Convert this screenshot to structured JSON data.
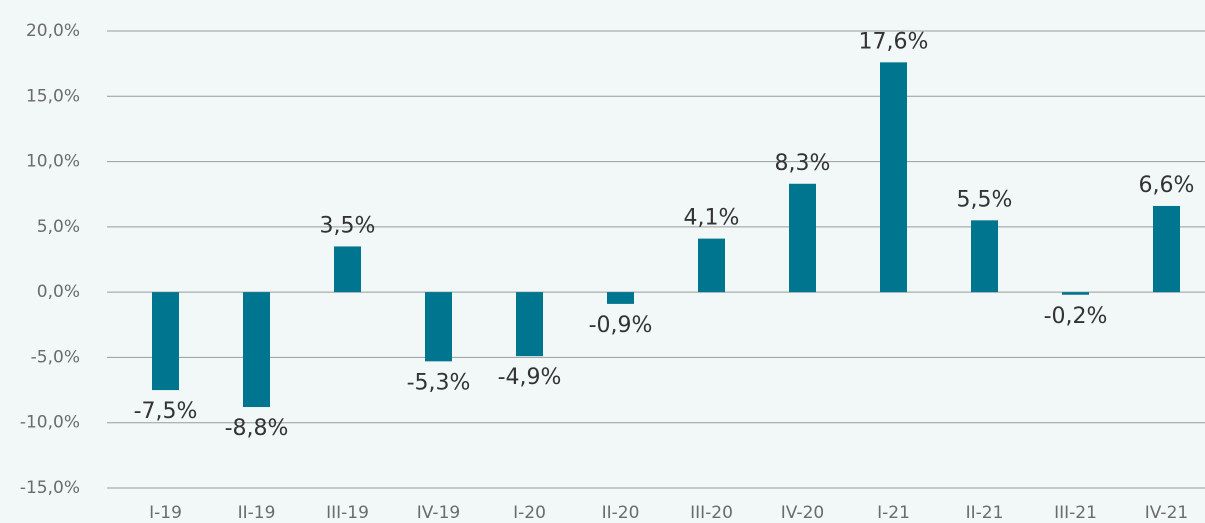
{
  "chart_data": {
    "type": "bar",
    "categories": [
      "I-19",
      "II-19",
      "III-19",
      "IV-19",
      "I-20",
      "II-20",
      "III-20",
      "IV-20",
      "I-21",
      "II-21",
      "III-21",
      "IV-21"
    ],
    "values": [
      -7.5,
      -8.8,
      3.5,
      -5.3,
      -4.9,
      -0.9,
      4.1,
      8.3,
      17.6,
      5.5,
      -0.2,
      6.6
    ],
    "value_labels": [
      "-7,5%",
      "-8,8%",
      "3,5%",
      "-5,3%",
      "-4,9%",
      "-0,9%",
      "4,1%",
      "8,3%",
      "17,6%",
      "5,5%",
      "-0,2%",
      "6,6%"
    ],
    "color": "#00758f",
    "ylim": [
      -15,
      20
    ],
    "yticks": [
      {
        "value": -15,
        "label": "-15,0%"
      },
      {
        "value": -10,
        "label": "-10,0%"
      },
      {
        "value": -5,
        "label": "-5,0%"
      },
      {
        "value": 0,
        "label": "0,0%"
      },
      {
        "value": 5,
        "label": "5,0%"
      },
      {
        "value": 10,
        "label": "10,0%"
      },
      {
        "value": 15,
        "label": "15,0%"
      },
      {
        "value": 20,
        "label": "20,0%"
      }
    ],
    "grid": true
  }
}
